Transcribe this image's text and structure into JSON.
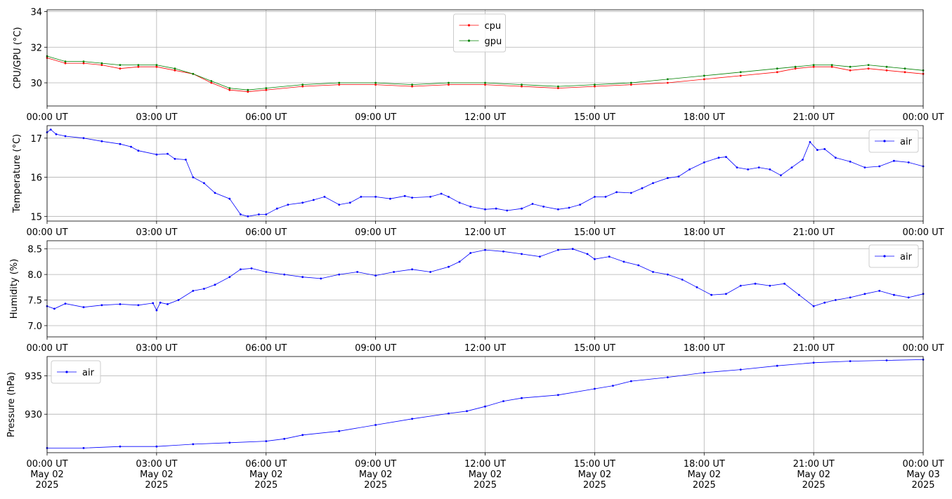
{
  "colors": {
    "cpu": "#ff0000",
    "gpu": "#008000",
    "air": "#0000ff",
    "grid": "#b0b0b0"
  },
  "chart_data": [
    {
      "type": "line",
      "id": "cpu-gpu",
      "ylabel": "CPU/GPU (°C)",
      "x_tick_labels": [
        "00:00 UT",
        "03:00 UT",
        "06:00 UT",
        "09:00 UT",
        "12:00 UT",
        "15:00 UT",
        "18:00 UT",
        "21:00 UT",
        "00:00 UT"
      ],
      "xlim_hours": [
        0,
        24
      ],
      "ylim": [
        28.7,
        34.1
      ],
      "yticks": [
        30,
        32,
        34
      ],
      "grid": true,
      "legend": "top-center",
      "series": [
        {
          "name": "cpu",
          "color": "#ff0000",
          "x_hours": [
            0,
            0.5,
            1,
            1.5,
            2,
            2.5,
            3,
            3.5,
            4,
            4.5,
            5,
            5.5,
            6,
            7,
            8,
            9,
            10,
            11,
            12,
            13,
            14,
            15,
            16,
            17,
            18,
            19,
            20,
            20.5,
            21,
            21.5,
            22,
            22.5,
            23,
            23.5,
            24
          ],
          "y": [
            31.4,
            31.1,
            31.1,
            31.0,
            30.8,
            30.9,
            30.9,
            30.7,
            30.5,
            30.0,
            29.6,
            29.5,
            29.6,
            29.8,
            29.9,
            29.9,
            29.8,
            29.9,
            29.9,
            29.8,
            29.7,
            29.8,
            29.9,
            30.0,
            30.2,
            30.4,
            30.6,
            30.8,
            30.9,
            30.9,
            30.7,
            30.8,
            30.7,
            30.6,
            30.5
          ]
        },
        {
          "name": "gpu",
          "color": "#008000",
          "x_hours": [
            0,
            0.5,
            1,
            1.5,
            2,
            2.5,
            3,
            3.5,
            4,
            4.5,
            5,
            5.5,
            6,
            7,
            8,
            9,
            10,
            11,
            12,
            13,
            14,
            15,
            16,
            17,
            18,
            19,
            20,
            20.5,
            21,
            21.5,
            22,
            22.5,
            23,
            23.5,
            24
          ],
          "y": [
            31.5,
            31.2,
            31.2,
            31.1,
            31.0,
            31.0,
            31.0,
            30.8,
            30.5,
            30.1,
            29.7,
            29.6,
            29.7,
            29.9,
            30.0,
            30.0,
            29.9,
            30.0,
            30.0,
            29.9,
            29.8,
            29.9,
            30.0,
            30.2,
            30.4,
            30.6,
            30.8,
            30.9,
            31.0,
            31.0,
            30.9,
            31.0,
            30.9,
            30.8,
            30.7
          ]
        }
      ]
    },
    {
      "type": "line",
      "id": "temperature",
      "ylabel": "Temperature (°C)",
      "x_tick_labels": [
        "00:00 UT",
        "03:00 UT",
        "06:00 UT",
        "09:00 UT",
        "12:00 UT",
        "15:00 UT",
        "18:00 UT",
        "21:00 UT",
        "00:00 UT"
      ],
      "xlim_hours": [
        0,
        24
      ],
      "ylim": [
        14.88,
        17.32
      ],
      "yticks": [
        15,
        16,
        17
      ],
      "grid": true,
      "legend": "top-right",
      "series": [
        {
          "name": "air",
          "color": "#0000ff",
          "x_hours": [
            0,
            0.1,
            0.25,
            0.5,
            1,
            1.5,
            2,
            2.3,
            2.5,
            3,
            3.3,
            3.5,
            3.8,
            4,
            4.3,
            4.6,
            5,
            5.3,
            5.5,
            5.8,
            6,
            6.3,
            6.6,
            7,
            7.3,
            7.6,
            8,
            8.3,
            8.6,
            9,
            9.4,
            9.8,
            10,
            10.5,
            10.8,
            11,
            11.3,
            11.6,
            12,
            12.3,
            12.6,
            13,
            13.3,
            13.6,
            14,
            14.3,
            14.6,
            15,
            15.3,
            15.6,
            16,
            16.3,
            16.6,
            17,
            17.3,
            17.6,
            18,
            18.4,
            18.6,
            18.9,
            19.2,
            19.5,
            19.8,
            20.1,
            20.4,
            20.7,
            20.9,
            21.1,
            21.3,
            21.6,
            22,
            22.4,
            22.8,
            23.2,
            23.6,
            24
          ],
          "y": [
            17.15,
            17.22,
            17.1,
            17.05,
            17.0,
            16.92,
            16.85,
            16.78,
            16.68,
            16.58,
            16.6,
            16.47,
            16.45,
            16.0,
            15.85,
            15.6,
            15.45,
            15.05,
            15.0,
            15.05,
            15.05,
            15.2,
            15.3,
            15.35,
            15.42,
            15.5,
            15.3,
            15.35,
            15.5,
            15.5,
            15.45,
            15.52,
            15.48,
            15.5,
            15.58,
            15.5,
            15.35,
            15.25,
            15.18,
            15.2,
            15.15,
            15.2,
            15.32,
            15.25,
            15.18,
            15.22,
            15.3,
            15.5,
            15.5,
            15.62,
            15.6,
            15.72,
            15.85,
            15.98,
            16.02,
            16.2,
            16.38,
            16.5,
            16.52,
            16.25,
            16.2,
            16.25,
            16.2,
            16.05,
            16.25,
            16.45,
            16.9,
            16.7,
            16.72,
            16.5,
            16.4,
            16.25,
            16.28,
            16.42,
            16.38,
            16.28
          ]
        }
      ]
    },
    {
      "type": "line",
      "id": "humidity",
      "ylabel": "Humidity (%)",
      "x_tick_labels": [
        "00:00 UT",
        "03:00 UT",
        "06:00 UT",
        "09:00 UT",
        "12:00 UT",
        "15:00 UT",
        "18:00 UT",
        "21:00 UT",
        "00:00 UT"
      ],
      "xlim_hours": [
        0,
        24
      ],
      "ylim": [
        6.78,
        8.66
      ],
      "yticks": [
        7.0,
        7.5,
        8.0,
        8.5
      ],
      "grid": true,
      "legend": "top-right",
      "series": [
        {
          "name": "air",
          "color": "#0000ff",
          "x_hours": [
            0,
            0.2,
            0.5,
            1,
            1.5,
            2,
            2.5,
            2.9,
            3.0,
            3.1,
            3.3,
            3.6,
            4,
            4.3,
            4.6,
            5,
            5.3,
            5.6,
            6,
            6.5,
            7,
            7.5,
            8,
            8.5,
            9,
            9.5,
            10,
            10.5,
            11,
            11.3,
            11.6,
            12,
            12.5,
            13,
            13.5,
            14,
            14.4,
            14.8,
            15,
            15.4,
            15.8,
            16.2,
            16.6,
            17,
            17.4,
            17.8,
            18.2,
            18.6,
            19,
            19.4,
            19.8,
            20.2,
            20.6,
            21,
            21.3,
            21.6,
            22,
            22.4,
            22.8,
            23.2,
            23.6,
            24
          ],
          "y": [
            7.38,
            7.33,
            7.43,
            7.36,
            7.4,
            7.42,
            7.4,
            7.44,
            7.3,
            7.45,
            7.42,
            7.5,
            7.68,
            7.72,
            7.8,
            7.95,
            8.1,
            8.12,
            8.05,
            8.0,
            7.95,
            7.92,
            8.0,
            8.05,
            7.98,
            8.05,
            8.1,
            8.05,
            8.15,
            8.25,
            8.42,
            8.48,
            8.45,
            8.4,
            8.35,
            8.48,
            8.5,
            8.4,
            8.3,
            8.35,
            8.25,
            8.18,
            8.05,
            8.0,
            7.9,
            7.75,
            7.6,
            7.62,
            7.78,
            7.82,
            7.78,
            7.82,
            7.6,
            7.38,
            7.45,
            7.5,
            7.55,
            7.62,
            7.68,
            7.6,
            7.55,
            7.62
          ]
        }
      ]
    },
    {
      "type": "line",
      "id": "pressure",
      "ylabel": "Pressure (hPa)",
      "x_tick_labels": [
        "00:00 UT\nMay 02\n2025",
        "03:00 UT\nMay 02\n2025",
        "06:00 UT\nMay 02\n2025",
        "09:00 UT\nMay 02\n2025",
        "12:00 UT\nMay 02\n2025",
        "15:00 UT\nMay 02\n2025",
        "18:00 UT\nMay 02\n2025",
        "21:00 UT\nMay 02\n2025",
        "00:00 UT\nMay 03\n2025"
      ],
      "xlim_hours": [
        0,
        24
      ],
      "ylim": [
        925.0,
        937.5
      ],
      "yticks": [
        930,
        935
      ],
      "grid": true,
      "legend": "top-left",
      "series": [
        {
          "name": "air",
          "color": "#0000ff",
          "x_hours": [
            0,
            1,
            2,
            3,
            4,
            5,
            6,
            6.5,
            7,
            8,
            9,
            10,
            11,
            11.5,
            12,
            12.5,
            13,
            14,
            15,
            15.5,
            16,
            17,
            18,
            19,
            20,
            21,
            22,
            23,
            24
          ],
          "y": [
            925.6,
            925.6,
            925.8,
            925.8,
            926.1,
            926.3,
            926.5,
            926.8,
            927.3,
            927.8,
            928.6,
            929.4,
            930.1,
            930.4,
            931.0,
            931.7,
            932.1,
            932.5,
            933.3,
            933.7,
            934.3,
            934.8,
            935.4,
            935.8,
            936.3,
            936.7,
            936.9,
            937.0,
            937.1
          ]
        }
      ]
    }
  ]
}
